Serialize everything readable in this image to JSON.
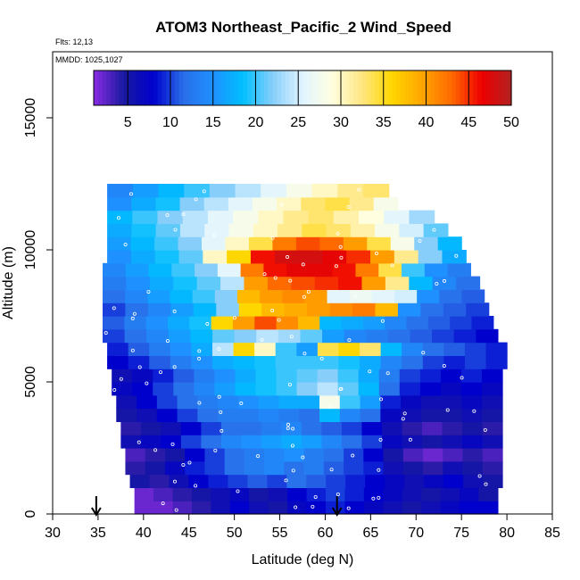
{
  "chart_data": {
    "type": "heatmap",
    "title": "ATOM3 Northeast_Pacific_2 Wind_Speed",
    "subtitle_flights": "Flts: 12,13",
    "subtitle_dates": "MMDD: 1025,1027",
    "xlabel": "Latitude (deg N)",
    "ylabel": "Altitude (m)",
    "xlim": [
      30,
      85
    ],
    "ylim": [
      0,
      17500
    ],
    "x_ticks": [
      "30",
      "35",
      "40",
      "45",
      "50",
      "55",
      "60",
      "65",
      "70",
      "75",
      "80",
      "85"
    ],
    "y_ticks": [
      "0",
      "5000",
      "10000",
      "15000"
    ],
    "colorbar": {
      "range": [
        1,
        50
      ],
      "ticks": [
        "5",
        "10",
        "15",
        "20",
        "25",
        "30",
        "35",
        "40",
        "45",
        "50"
      ],
      "colors": [
        "#8a2be2",
        "#1a1aa0",
        "#0000cd",
        "#2a6ee8",
        "#1e90ff",
        "#00bfff",
        "#87cefa",
        "#e0f4ff",
        "#ffffe0",
        "#ffe680",
        "#ffd700",
        "#ffa500",
        "#ff6a00",
        "#ee0000",
        "#b22222"
      ]
    },
    "arrows_latitude": [
      34.8,
      61.3
    ],
    "altitude_bins": [
      {
        "alt": 250,
        "lat_min": 39,
        "lat_max": 79,
        "speeds": [
          2,
          2,
          3,
          4,
          6,
          8,
          6,
          5,
          7,
          8,
          9,
          8,
          7,
          6,
          5,
          6,
          7,
          8,
          8
        ]
      },
      {
        "alt": 750,
        "lat_min": 39,
        "lat_max": 79,
        "speeds": [
          2,
          3,
          4,
          5,
          6,
          7,
          5,
          6,
          8,
          9,
          10,
          9,
          8,
          7,
          6,
          5,
          6,
          7,
          5
        ]
      },
      {
        "alt": 1250,
        "lat_min": 38.5,
        "lat_max": 79.5,
        "speeds": [
          5,
          4,
          6,
          8,
          9,
          10,
          11,
          10,
          12,
          11,
          10,
          9,
          8,
          7,
          6,
          7,
          8,
          6,
          5
        ]
      },
      {
        "alt": 1750,
        "lat_min": 38,
        "lat_max": 79.5,
        "speeds": [
          4,
          5,
          7,
          9,
          10,
          12,
          13,
          14,
          12,
          13,
          11,
          10,
          9,
          6,
          5,
          4,
          6,
          5,
          4
        ]
      },
      {
        "alt": 2250,
        "lat_min": 38,
        "lat_max": 79.5,
        "speeds": [
          3,
          4,
          5,
          8,
          10,
          12,
          13,
          14,
          15,
          13,
          12,
          10,
          8,
          5,
          3,
          2,
          3,
          4,
          3
        ]
      },
      {
        "alt": 2750,
        "lat_min": 37.5,
        "lat_max": 79.5,
        "speeds": [
          6,
          7,
          8,
          10,
          12,
          14,
          15,
          16,
          17,
          16,
          14,
          12,
          10,
          7,
          6,
          5,
          6,
          7,
          6
        ]
      },
      {
        "alt": 3250,
        "lat_min": 37.5,
        "lat_max": 79.5,
        "speeds": [
          4,
          5,
          6,
          8,
          10,
          12,
          12,
          13,
          14,
          12,
          11,
          10,
          8,
          6,
          4,
          3,
          4,
          5,
          4
        ]
      },
      {
        "alt": 3750,
        "lat_min": 37,
        "lat_max": 79.5,
        "speeds": [
          5,
          6,
          8,
          10,
          12,
          13,
          13,
          14,
          13,
          12,
          18,
          14,
          12,
          7,
          6,
          5,
          5,
          6,
          5
        ]
      },
      {
        "alt": 4250,
        "lat_min": 37,
        "lat_max": 79.5,
        "speeds": [
          6,
          8,
          10,
          12,
          13,
          14,
          15,
          16,
          17,
          17,
          28,
          20,
          16,
          9,
          7,
          6,
          6,
          7,
          6
        ]
      },
      {
        "alt": 4750,
        "lat_min": 36.5,
        "lat_max": 79.5,
        "speeds": [
          7,
          8,
          10,
          12,
          14,
          16,
          18,
          19,
          20,
          22,
          24,
          21,
          18,
          12,
          9,
          8,
          7,
          8,
          7
        ]
      },
      {
        "alt": 5250,
        "lat_min": 36.5,
        "lat_max": 79.5,
        "speeds": [
          6,
          7,
          9,
          11,
          13,
          15,
          17,
          19,
          20,
          21,
          22,
          20,
          17,
          13,
          10,
          9,
          8,
          9,
          8
        ]
      },
      {
        "alt": 5750,
        "lat_min": 36,
        "lat_max": 80,
        "speeds": [
          8,
          9,
          11,
          13,
          15,
          17,
          18,
          19,
          20,
          20,
          20,
          19,
          17,
          14,
          12,
          10,
          9,
          10,
          9
        ]
      },
      {
        "alt": 6250,
        "lat_min": 36,
        "lat_max": 80,
        "speeds": [
          9,
          11,
          13,
          15,
          17,
          24,
          36,
          30,
          20,
          16,
          34,
          36,
          33,
          18,
          14,
          12,
          11,
          10,
          9
        ]
      },
      {
        "alt": 6750,
        "lat_min": 35.5,
        "lat_max": 79,
        "speeds": [
          10,
          12,
          14,
          16,
          18,
          21,
          22,
          24,
          23,
          21,
          16,
          14,
          13,
          12,
          11,
          10,
          9,
          8
        ]
      },
      {
        "alt": 7250,
        "lat_min": 35.5,
        "lat_max": 78.5,
        "speeds": [
          11,
          13,
          15,
          17,
          19,
          36,
          40,
          44,
          41,
          38,
          18,
          17,
          16,
          14,
          12,
          11,
          10,
          9
        ]
      },
      {
        "alt": 7750,
        "lat_min": 35.5,
        "lat_max": 78,
        "speeds": [
          10,
          12,
          14,
          16,
          18,
          22,
          36,
          38,
          39,
          40,
          41,
          42,
          38,
          15,
          12,
          11,
          10
        ]
      },
      {
        "alt": 8250,
        "lat_min": 35.5,
        "lat_max": 77.5,
        "speeds": [
          12,
          14,
          16,
          18,
          20,
          22,
          38,
          40,
          41,
          40,
          26,
          27,
          26,
          25,
          15,
          12,
          11
        ]
      },
      {
        "alt": 8750,
        "lat_min": 35.5,
        "lat_max": 77,
        "speeds": [
          13,
          15,
          17,
          19,
          21,
          24,
          40,
          43,
          44,
          45,
          46,
          40,
          32,
          18,
          14,
          12
        ]
      },
      {
        "alt": 9250,
        "lat_min": 35.5,
        "lat_max": 76,
        "speeds": [
          14,
          16,
          18,
          20,
          22,
          26,
          42,
          46,
          47,
          47,
          46,
          42,
          34,
          20,
          15,
          13
        ]
      },
      {
        "alt": 9750,
        "lat_min": 36,
        "lat_max": 75.5,
        "speeds": [
          15,
          17,
          19,
          21,
          30,
          36,
          46,
          48,
          48,
          47,
          45,
          40,
          32,
          22,
          17
        ]
      },
      {
        "alt": 10250,
        "lat_min": 36,
        "lat_max": 75,
        "speeds": [
          16,
          18,
          20,
          22,
          26,
          30,
          34,
          42,
          44,
          43,
          40,
          34,
          28,
          22,
          18
        ]
      },
      {
        "alt": 10750,
        "lat_min": 36,
        "lat_max": 73.5,
        "speeds": [
          17,
          19,
          21,
          24,
          26,
          28,
          30,
          32,
          34,
          33,
          31,
          28,
          25,
          21
        ]
      },
      {
        "alt": 11250,
        "lat_min": 36,
        "lat_max": 72,
        "speeds": [
          18,
          20,
          22,
          24,
          26,
          28,
          30,
          32,
          33,
          31,
          29,
          26,
          23
        ]
      },
      {
        "alt": 11750,
        "lat_min": 36,
        "lat_max": 68,
        "speeds": [
          15,
          17,
          19,
          22,
          24,
          26,
          28,
          30,
          33,
          34,
          32,
          28
        ]
      },
      {
        "alt": 12250,
        "lat_min": 36,
        "lat_max": 67,
        "speeds": [
          14,
          16,
          18,
          20,
          22,
          24,
          26,
          28,
          30,
          32,
          33
        ]
      }
    ]
  }
}
